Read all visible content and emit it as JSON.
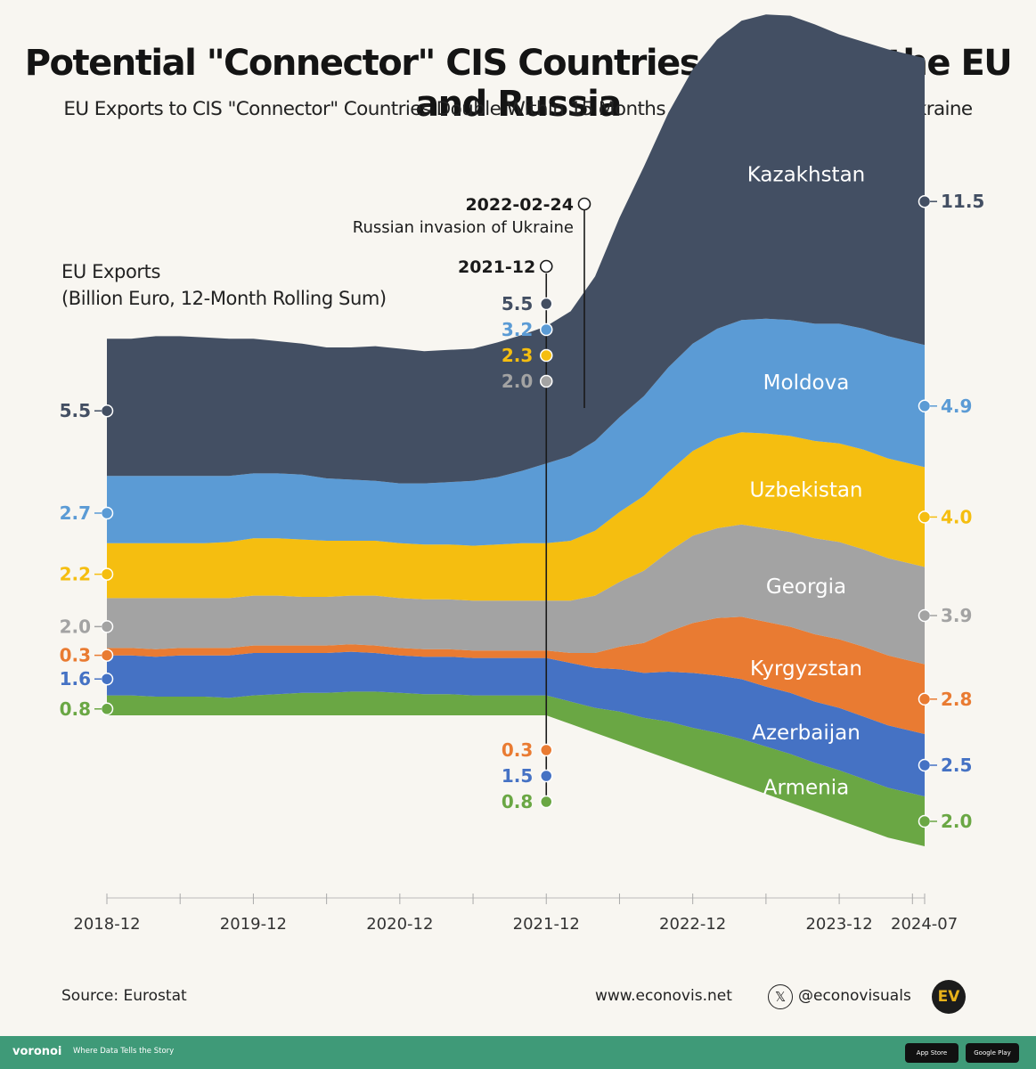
{
  "title": "Potential \"Connector\" CIS Countries Between the EU and Russia",
  "subtitle": "EU Exports to CIS \"Connector\" Countries Double Within 15 Months After Russia's Invasion of Ukraine",
  "ylabel_line1": "EU Exports",
  "ylabel_line2": "(Billion Euro, 12-Month Rolling Sum)",
  "source": "Source: Eurostat",
  "website": "www.econovis.net",
  "social": "@econovisuals",
  "logo_text": "EV",
  "brand": "voronoi",
  "brand_tagline": "Where Data Tells the Story",
  "app_store": "App Store",
  "google_play": "Google Play",
  "x_icon": "x-logo-icon",
  "colors": {
    "Armenia": "#6aa744",
    "Azerbaijan": "#4572c4",
    "Kyrgyzstan": "#e97b32",
    "Georgia": "#a3a3a3",
    "Uzbekistan": "#f5be10",
    "Moldova": "#5b9bd5",
    "Kazakhstan": "#434f63",
    "background": "#f8f6f1",
    "bar": "#3f9a78"
  },
  "chart_data": {
    "type": "area",
    "stacked": true,
    "x": [
      "2018-12",
      "2019-02",
      "2019-04",
      "2019-06",
      "2019-08",
      "2019-10",
      "2019-12",
      "2020-02",
      "2020-04",
      "2020-06",
      "2020-08",
      "2020-10",
      "2020-12",
      "2021-02",
      "2021-04",
      "2021-06",
      "2021-08",
      "2021-10",
      "2021-12",
      "2022-02",
      "2022-04",
      "2022-06",
      "2022-08",
      "2022-10",
      "2022-12",
      "2023-02",
      "2023-04",
      "2023-06",
      "2023-08",
      "2023-10",
      "2023-12",
      "2024-02",
      "2024-04",
      "2024-07"
    ],
    "x_tick_labels": [
      "2018-12",
      "2019-12",
      "2020-12",
      "2021-12",
      "2022-12",
      "2023-12",
      "2024-07"
    ],
    "series": [
      {
        "name": "Armenia",
        "values": [
          0.8,
          0.8,
          0.75,
          0.75,
          0.75,
          0.7,
          0.8,
          0.85,
          0.9,
          0.9,
          0.95,
          0.95,
          0.9,
          0.85,
          0.85,
          0.8,
          0.8,
          0.8,
          0.8,
          0.9,
          1.0,
          1.2,
          1.3,
          1.5,
          1.6,
          1.75,
          1.85,
          1.9,
          1.95,
          1.95,
          2.0,
          2.0,
          2.0,
          2.0
        ]
      },
      {
        "name": "Azerbaijan",
        "values": [
          1.6,
          1.6,
          1.6,
          1.65,
          1.65,
          1.7,
          1.7,
          1.65,
          1.6,
          1.6,
          1.6,
          1.55,
          1.5,
          1.5,
          1.5,
          1.5,
          1.5,
          1.5,
          1.5,
          1.55,
          1.6,
          1.7,
          1.8,
          2.0,
          2.2,
          2.3,
          2.4,
          2.4,
          2.45,
          2.45,
          2.5,
          2.5,
          2.5,
          2.5
        ]
      },
      {
        "name": "Kyrgyzstan",
        "values": [
          0.3,
          0.3,
          0.3,
          0.3,
          0.3,
          0.3,
          0.3,
          0.3,
          0.3,
          0.3,
          0.3,
          0.3,
          0.3,
          0.3,
          0.3,
          0.3,
          0.3,
          0.3,
          0.3,
          0.4,
          0.6,
          0.9,
          1.2,
          1.6,
          2.0,
          2.3,
          2.5,
          2.6,
          2.65,
          2.7,
          2.75,
          2.8,
          2.8,
          2.8
        ]
      },
      {
        "name": "Georgia",
        "values": [
          2.0,
          2.0,
          2.05,
          2.0,
          2.0,
          2.0,
          2.0,
          2.0,
          1.95,
          1.95,
          1.95,
          2.0,
          2.0,
          2.0,
          2.0,
          2.0,
          2.0,
          2.0,
          2.0,
          2.1,
          2.3,
          2.6,
          2.9,
          3.2,
          3.5,
          3.6,
          3.7,
          3.75,
          3.8,
          3.85,
          3.9,
          3.9,
          3.9,
          3.9
        ]
      },
      {
        "name": "Uzbekistan",
        "values": [
          2.2,
          2.2,
          2.2,
          2.2,
          2.2,
          2.25,
          2.3,
          2.3,
          2.3,
          2.25,
          2.2,
          2.2,
          2.2,
          2.2,
          2.2,
          2.2,
          2.25,
          2.3,
          2.3,
          2.4,
          2.6,
          2.8,
          3.0,
          3.2,
          3.4,
          3.6,
          3.7,
          3.8,
          3.85,
          3.9,
          3.95,
          4.0,
          4.0,
          4.0
        ]
      },
      {
        "name": "Moldova",
        "values": [
          2.7,
          2.7,
          2.7,
          2.7,
          2.7,
          2.65,
          2.6,
          2.6,
          2.6,
          2.5,
          2.45,
          2.4,
          2.4,
          2.45,
          2.5,
          2.6,
          2.7,
          2.9,
          3.2,
          3.4,
          3.6,
          3.8,
          4.0,
          4.2,
          4.3,
          4.4,
          4.5,
          4.6,
          4.65,
          4.7,
          4.8,
          4.85,
          4.9,
          4.9
        ]
      },
      {
        "name": "Kazakhstan",
        "values": [
          5.5,
          5.5,
          5.6,
          5.6,
          5.55,
          5.5,
          5.4,
          5.3,
          5.25,
          5.25,
          5.3,
          5.4,
          5.4,
          5.3,
          5.3,
          5.3,
          5.4,
          5.45,
          5.5,
          5.8,
          6.6,
          8.0,
          9.2,
          10.2,
          11.0,
          11.6,
          12.0,
          12.2,
          12.2,
          12.0,
          11.6,
          11.5,
          11.5,
          11.5
        ]
      }
    ],
    "start_values": {
      "Kazakhstan": "5.5",
      "Moldova": "2.7",
      "Uzbekistan": "2.2",
      "Georgia": "2.0",
      "Kyrgyzstan": "0.3",
      "Azerbaijan": "1.6",
      "Armenia": "0.8"
    },
    "mid_values": {
      "Kazakhstan": "5.5",
      "Moldova": "3.2",
      "Uzbekistan": "2.3",
      "Georgia": "2.0",
      "Kyrgyzstan": "0.3",
      "Azerbaijan": "1.5",
      "Armenia": "0.8"
    },
    "end_values": {
      "Kazakhstan": "11.5",
      "Moldova": "4.9",
      "Uzbekistan": "4.0",
      "Georgia": "3.9",
      "Kyrgyzstan": "2.8",
      "Azerbaijan": "2.5",
      "Armenia": "2.0"
    },
    "annotations": [
      {
        "x": "2021-12",
        "label": "2021-12"
      },
      {
        "x": "2022-02-24",
        "label": "2022-02-24",
        "text": "Russian invasion of Ukraine"
      }
    ]
  }
}
